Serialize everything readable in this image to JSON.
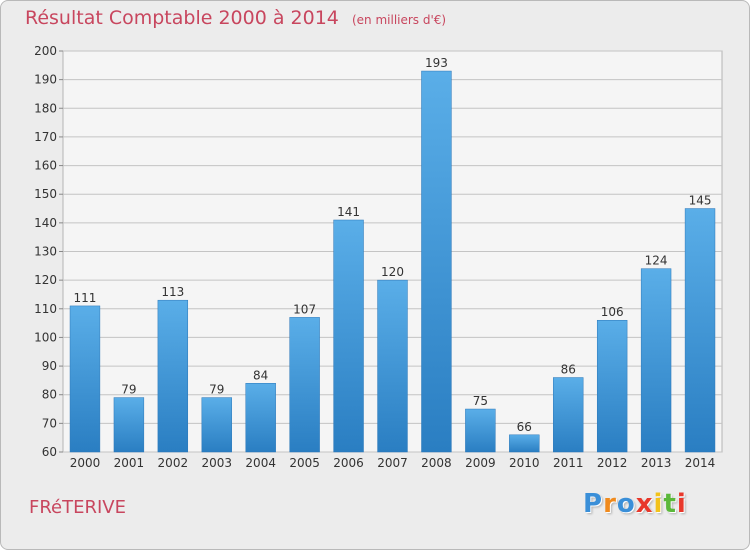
{
  "title": "Résultat Comptable 2000 à 2014",
  "unit_label": "(en milliers d'€)",
  "commune": "FRéTERIVE",
  "logo": {
    "letters": [
      "P",
      "r",
      "o",
      "x",
      "i",
      "t",
      "i"
    ],
    "colors": [
      "#3a8fd8",
      "#f08a1c",
      "#3a8fd8",
      "#e8382b",
      "#f2c21b",
      "#5bb83a",
      "#e8382b"
    ]
  },
  "colors": {
    "title": "#c8465e",
    "bar_top": "#5aaee8",
    "bar_bottom": "#2a7ec2",
    "grid": "#c4c4c4"
  },
  "chart_data": {
    "type": "bar",
    "title": "Résultat Comptable 2000 à 2014",
    "categories": [
      "2000",
      "2001",
      "2002",
      "2003",
      "2004",
      "2005",
      "2006",
      "2007",
      "2008",
      "2009",
      "2010",
      "2011",
      "2012",
      "2013",
      "2014"
    ],
    "values": [
      111,
      79,
      113,
      79,
      84,
      107,
      141,
      120,
      193,
      75,
      66,
      86,
      106,
      124,
      145
    ],
    "ylim": [
      60,
      200
    ],
    "yticks": [
      60,
      70,
      80,
      90,
      100,
      110,
      120,
      130,
      140,
      150,
      160,
      170,
      180,
      190,
      200
    ],
    "xlabel": "",
    "ylabel": "",
    "grid": true
  }
}
